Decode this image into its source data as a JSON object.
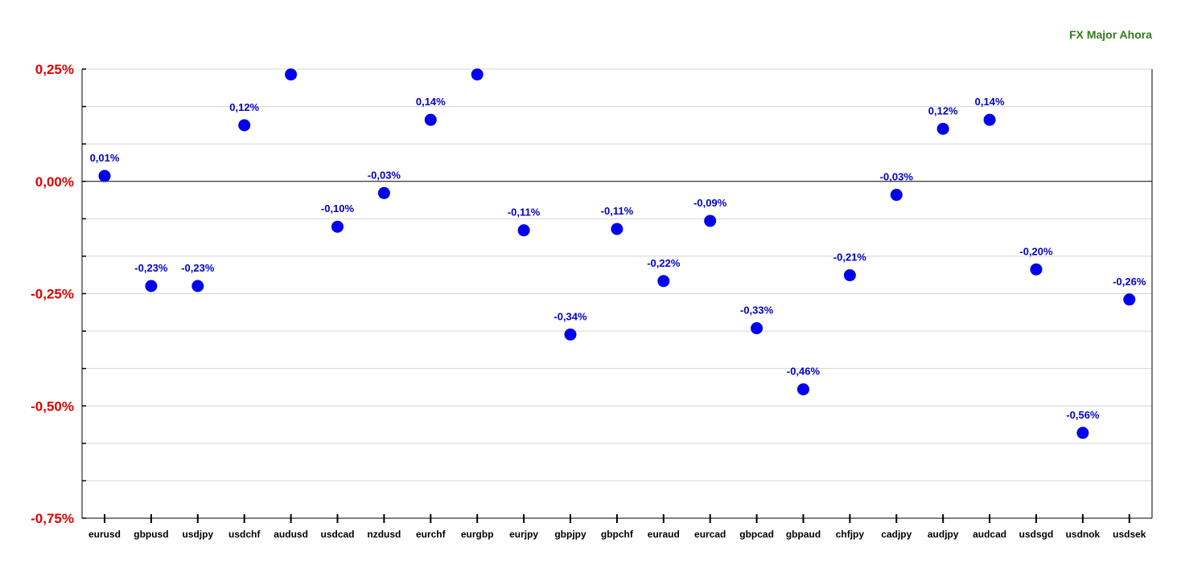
{
  "chart_data": {
    "type": "scatter",
    "title": "FX Major Ahora",
    "categories": [
      "eurusd",
      "gbpusd",
      "usdjpy",
      "usdchf",
      "audusd",
      "usdcad",
      "nzdusd",
      "eurchf",
      "eurgbp",
      "eurjpy",
      "gbpjpy",
      "gbpchf",
      "euraud",
      "eurcad",
      "gbpcad",
      "gbpaud",
      "chfjpy",
      "cadjpy",
      "audjpy",
      "audcad",
      "usdsgd",
      "usdnok",
      "usdsek"
    ],
    "values": [
      0.012,
      -0.233,
      -0.233,
      0.125,
      0.238,
      -0.101,
      -0.026,
      0.137,
      0.238,
      -0.109,
      -0.341,
      -0.106,
      -0.222,
      -0.088,
      -0.327,
      -0.463,
      -0.209,
      -0.03,
      0.117,
      0.137,
      -0.196,
      -0.56,
      -0.263
    ],
    "data_labels": [
      "0,01%",
      "-0,23%",
      "-0,23%",
      "0,12%",
      "",
      "-0,10%",
      "-0,03%",
      "0,14%",
      "",
      "-0,11%",
      "-0,34%",
      "-0,11%",
      "-0,22%",
      "-0,09%",
      "-0,33%",
      "-0,46%",
      "-0,21%",
      "-0,03%",
      "0,12%",
      "0,14%",
      "-0,20%",
      "-0,56%",
      "-0,26%"
    ],
    "y_ticks": [
      0.25,
      0.0,
      -0.25,
      -0.5,
      -0.75
    ],
    "y_tick_labels": [
      "0,25%",
      "0,00%",
      "-0,25%",
      "-0,50%",
      "-0,75%"
    ],
    "ylim": [
      -0.75,
      0.25
    ],
    "grid": true,
    "colors": {
      "point": "#0000ee",
      "data_label": "#0000cc",
      "y_tick_label": "#dd0000",
      "title": "#2e7d1a",
      "gridline": "#d4d4d4",
      "zero_line": "#000000"
    }
  }
}
